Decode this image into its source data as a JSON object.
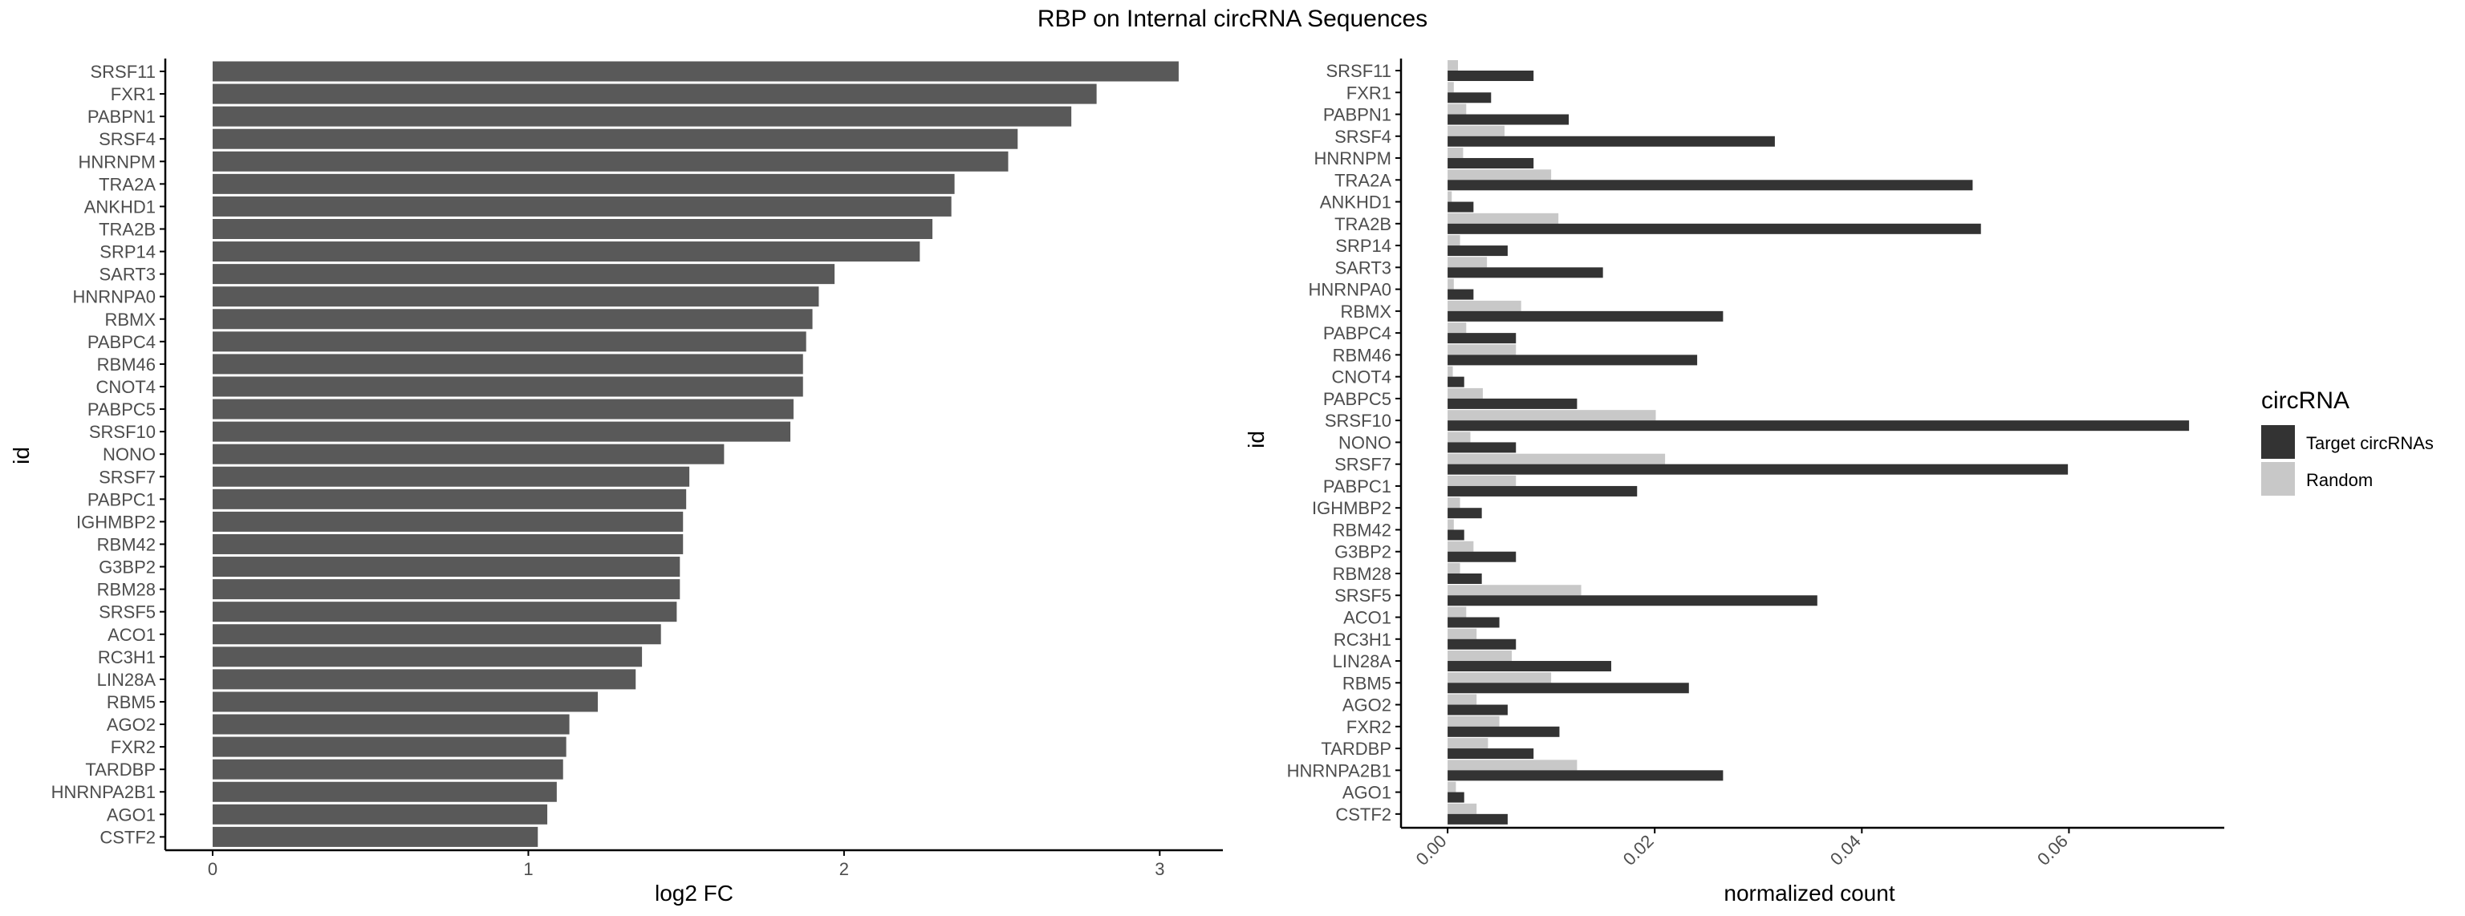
{
  "figure_title": "RBP on Internal circRNA Sequences",
  "colors": {
    "bar_fc": "#595959",
    "target": "#333333",
    "random": "#c8c8c8",
    "axis": "#000000",
    "tick_text": "#4d4d4d",
    "title_text": "#000000"
  },
  "chart_data": [
    {
      "type": "bar",
      "orientation": "horizontal",
      "title": "",
      "xlabel": "log2 FC",
      "ylabel": "id",
      "xlim": [
        -0.15,
        3.2
      ],
      "x_ticks": [
        0,
        1,
        2,
        3
      ],
      "x_tick_labels": [
        "0",
        "1",
        "2",
        "3"
      ],
      "grid": false,
      "categories": [
        "SRSF11",
        "FXR1",
        "PABPN1",
        "SRSF4",
        "HNRNPM",
        "TRA2A",
        "ANKHD1",
        "TRA2B",
        "SRP14",
        "SART3",
        "HNRNPA0",
        "RBMX",
        "PABPC4",
        "RBM46",
        "CNOT4",
        "PABPC5",
        "SRSF10",
        "NONO",
        "SRSF7",
        "PABPC1",
        "IGHMBP2",
        "RBM42",
        "G3BP2",
        "RBM28",
        "SRSF5",
        "ACO1",
        "RC3H1",
        "LIN28A",
        "RBM5",
        "AGO2",
        "FXR2",
        "TARDBP",
        "HNRNPA2B1",
        "AGO1",
        "CSTF2"
      ],
      "values": [
        3.06,
        2.8,
        2.72,
        2.55,
        2.52,
        2.35,
        2.34,
        2.28,
        2.24,
        1.97,
        1.92,
        1.9,
        1.88,
        1.87,
        1.87,
        1.84,
        1.83,
        1.62,
        1.51,
        1.5,
        1.49,
        1.49,
        1.48,
        1.48,
        1.47,
        1.42,
        1.36,
        1.34,
        1.22,
        1.13,
        1.12,
        1.11,
        1.09,
        1.06,
        1.03
      ]
    },
    {
      "type": "bar",
      "orientation": "horizontal",
      "title": "",
      "xlabel": "normalized count",
      "ylabel": "id",
      "xlim": [
        -0.0045,
        0.075
      ],
      "x_ticks": [
        0,
        0.02,
        0.04,
        0.06
      ],
      "x_tick_labels": [
        "0.00",
        "0.02",
        "0.04",
        "0.06"
      ],
      "grid": false,
      "legend": {
        "title": "circRNA",
        "placement": "right",
        "entries": [
          "Target circRNAs",
          "Random"
        ]
      },
      "categories": [
        "SRSF11",
        "FXR1",
        "PABPN1",
        "SRSF4",
        "HNRNPM",
        "TRA2A",
        "ANKHD1",
        "TRA2B",
        "SRP14",
        "SART3",
        "HNRNPA0",
        "RBMX",
        "PABPC4",
        "RBM46",
        "CNOT4",
        "PABPC5",
        "SRSF10",
        "NONO",
        "SRSF7",
        "PABPC1",
        "IGHMBP2",
        "RBM42",
        "G3BP2",
        "RBM28",
        "SRSF5",
        "ACO1",
        "RC3H1",
        "LIN28A",
        "RBM5",
        "AGO2",
        "FXR2",
        "TARDBP",
        "HNRNPA2B1",
        "AGO1",
        "CSTF2"
      ],
      "series": [
        {
          "name": "Random",
          "values": [
            0.001,
            0.0006,
            0.0018,
            0.0055,
            0.0015,
            0.01,
            0.0004,
            0.0107,
            0.0012,
            0.0038,
            0.0006,
            0.0071,
            0.0018,
            0.0066,
            0.0005,
            0.0034,
            0.0201,
            0.0022,
            0.021,
            0.0066,
            0.0012,
            0.0006,
            0.0025,
            0.0012,
            0.0129,
            0.0018,
            0.0028,
            0.0062,
            0.01,
            0.0028,
            0.005,
            0.0039,
            0.0125,
            0.0008,
            0.0028
          ]
        },
        {
          "name": "Target circRNAs",
          "values": [
            0.0083,
            0.0042,
            0.0117,
            0.0316,
            0.0083,
            0.0507,
            0.0025,
            0.0515,
            0.0058,
            0.015,
            0.0025,
            0.0266,
            0.0066,
            0.0241,
            0.0016,
            0.0125,
            0.0716,
            0.0066,
            0.0599,
            0.0183,
            0.0033,
            0.0016,
            0.0066,
            0.0033,
            0.0357,
            0.005,
            0.0066,
            0.0158,
            0.0233,
            0.0058,
            0.0108,
            0.0083,
            0.0266,
            0.0016,
            0.0058
          ]
        }
      ]
    }
  ]
}
